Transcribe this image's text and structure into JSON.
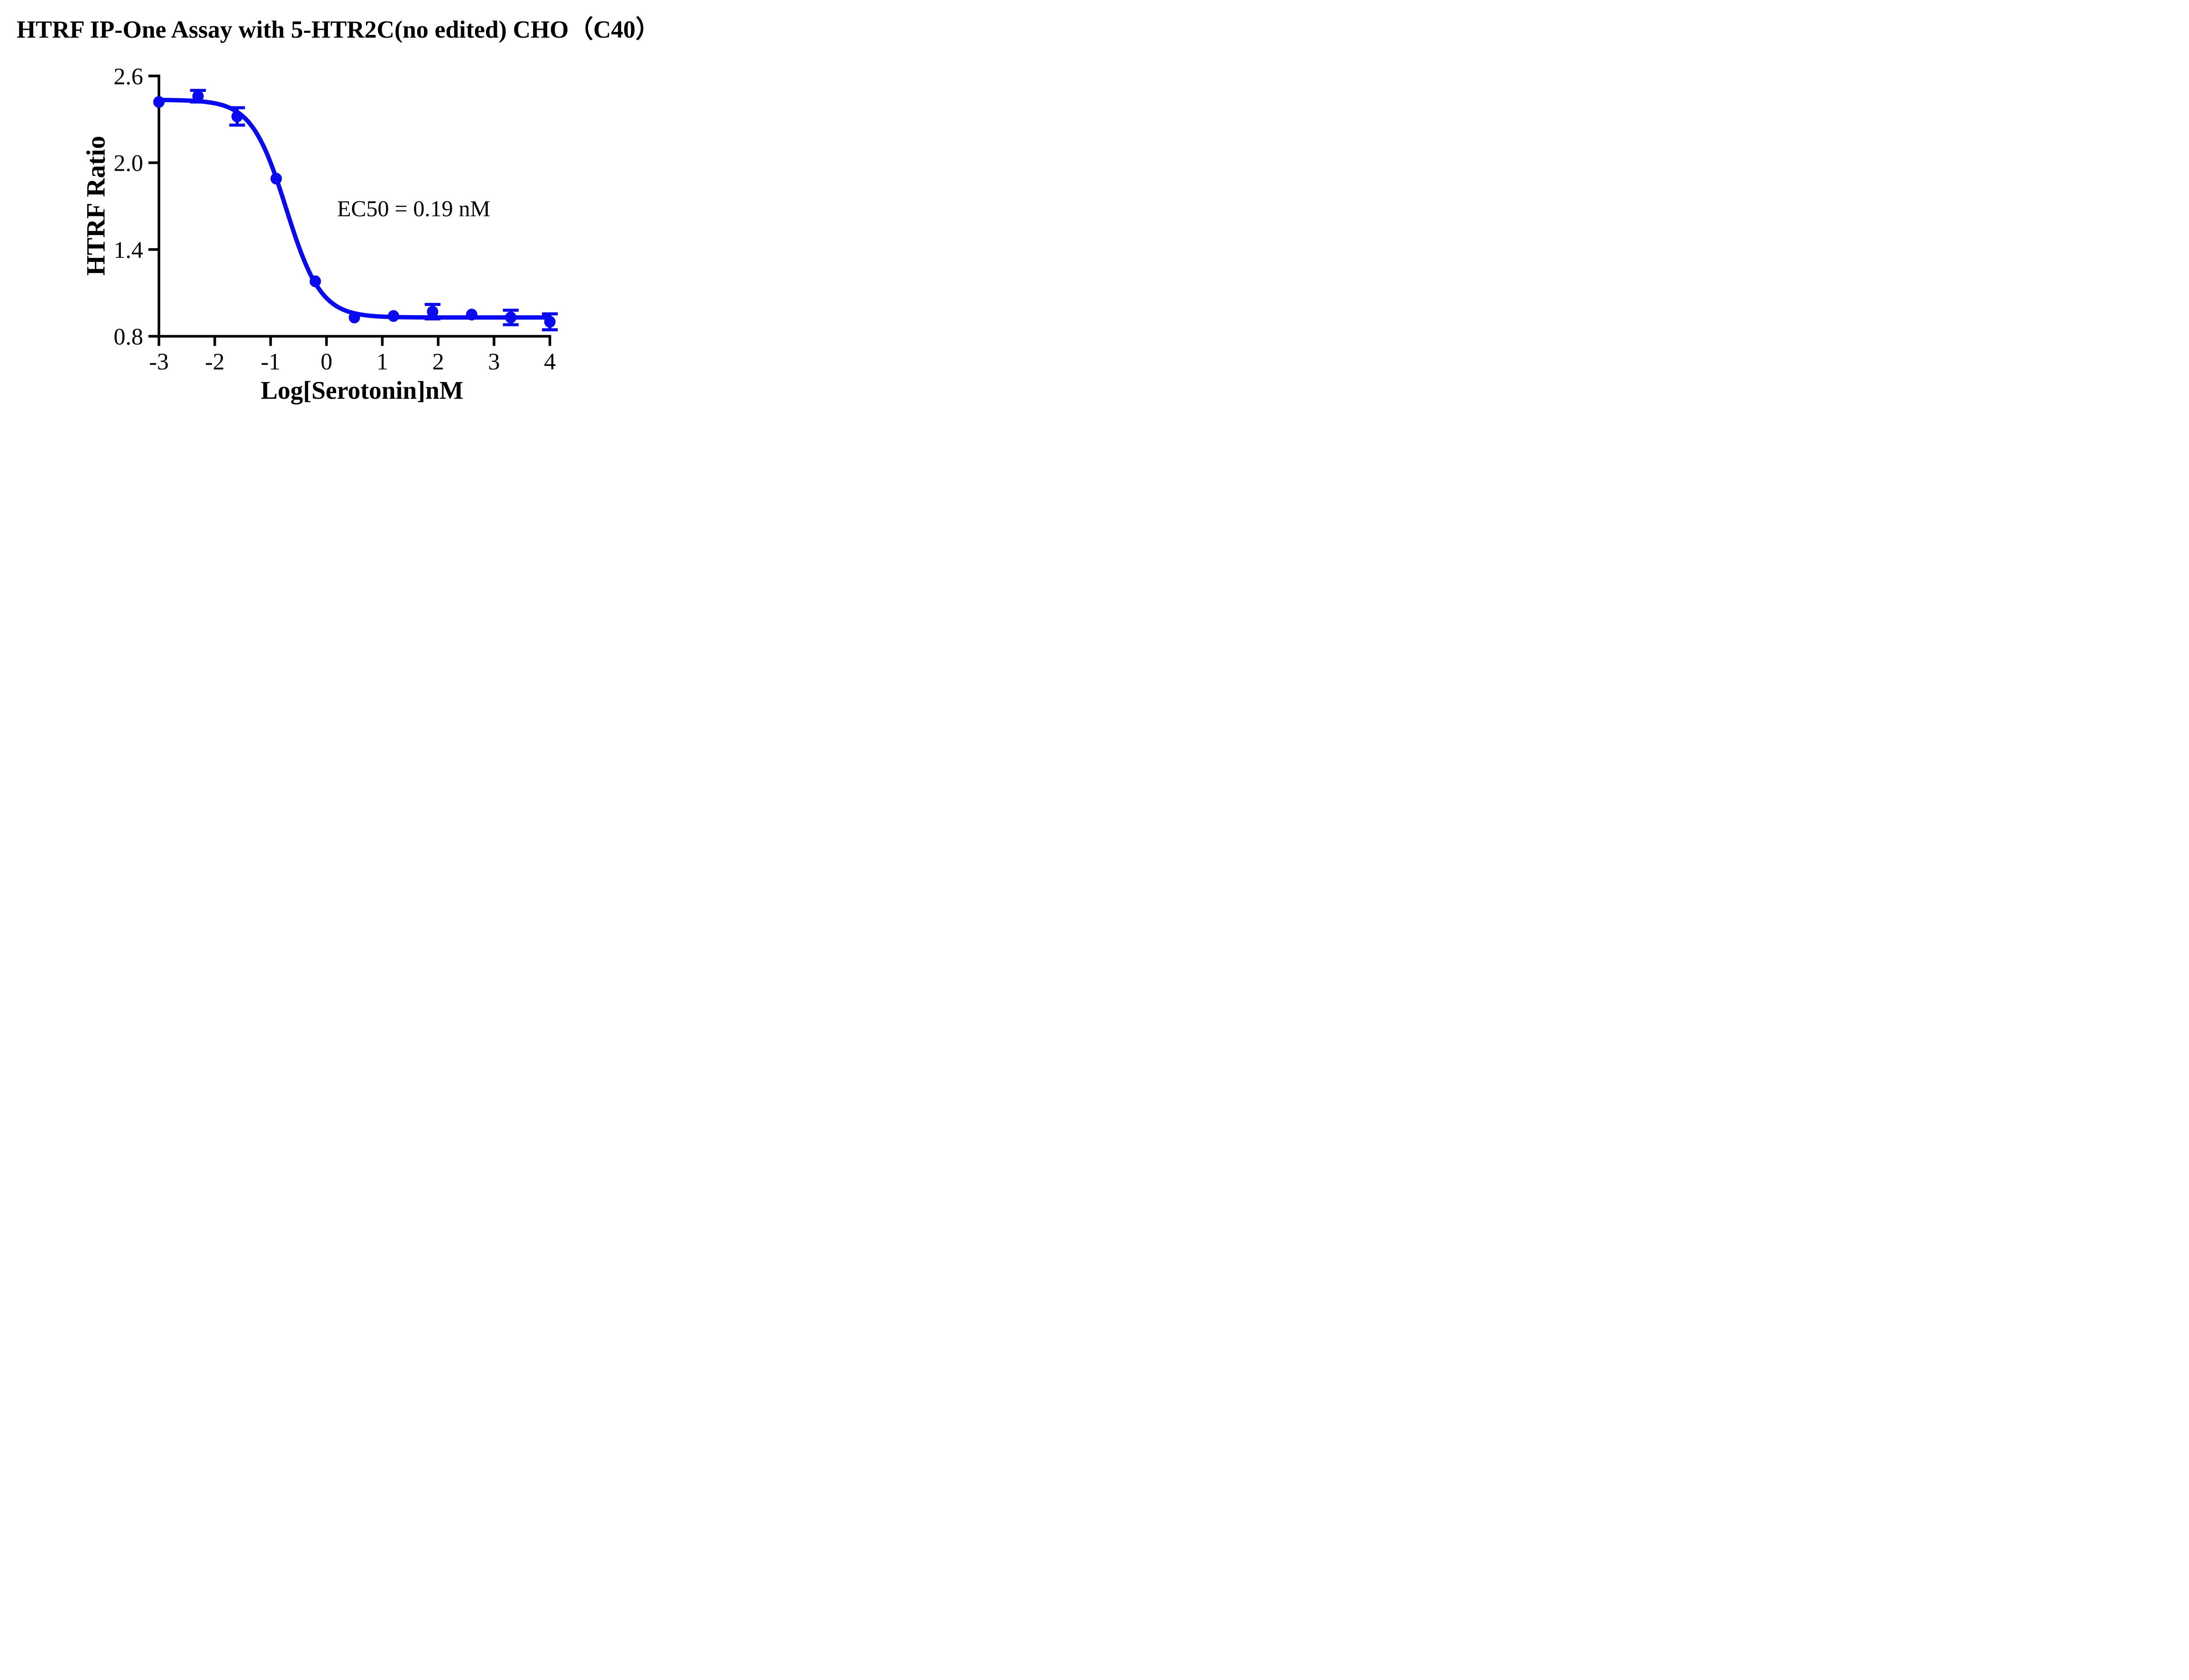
{
  "colors": {
    "series_blue": "#0A0AF0",
    "axis_black": "#000000",
    "background": "#FFFFFF"
  },
  "chart_data": {
    "type": "scatter",
    "title": "HTRF IP-One Assay with 5-HTR2C(no edited) CHO（C40）",
    "xlabel": "Log[Serotonin]nM",
    "ylabel": "HTRF Ratio",
    "annotation": "EC50 = 0.19 nM",
    "ec50_nM": 0.19,
    "xlim": [
      -3,
      4
    ],
    "ylim": [
      0.8,
      2.6
    ],
    "x_tick_values": [
      -3,
      -2,
      -1,
      0,
      1,
      2,
      3,
      4
    ],
    "x_tick_labels": [
      "-3",
      "-2",
      "-1",
      "0",
      "1",
      "2",
      "3",
      "4"
    ],
    "y_tick_values": [
      2.6,
      2.0,
      1.4,
      0.8
    ],
    "y_tick_labels": [
      "2.6",
      "2.0",
      "1.4",
      "0.8"
    ],
    "grid": false,
    "legend": "none",
    "points": [
      {
        "x": -3.0,
        "y": 2.42,
        "err": 0
      },
      {
        "x": -2.3,
        "y": 2.46,
        "err": 0.04
      },
      {
        "x": -1.6,
        "y": 2.32,
        "err": 0.06
      },
      {
        "x": -0.9,
        "y": 1.89,
        "err": 0
      },
      {
        "x": -0.2,
        "y": 1.18,
        "err": 0
      },
      {
        "x": 0.5,
        "y": 0.93,
        "err": 0
      },
      {
        "x": 1.2,
        "y": 0.94,
        "err": 0
      },
      {
        "x": 1.9,
        "y": 0.97,
        "err": 0.05
      },
      {
        "x": 2.6,
        "y": 0.95,
        "err": 0
      },
      {
        "x": 3.3,
        "y": 0.93,
        "err": 0.05
      },
      {
        "x": 4.0,
        "y": 0.9,
        "err": 0.055
      }
    ],
    "fit": {
      "model": "4PL sigmoidal dose-response",
      "top": 2.435,
      "bottom": 0.93,
      "log_ec50": -0.721,
      "hill_slope": 1.4
    }
  }
}
